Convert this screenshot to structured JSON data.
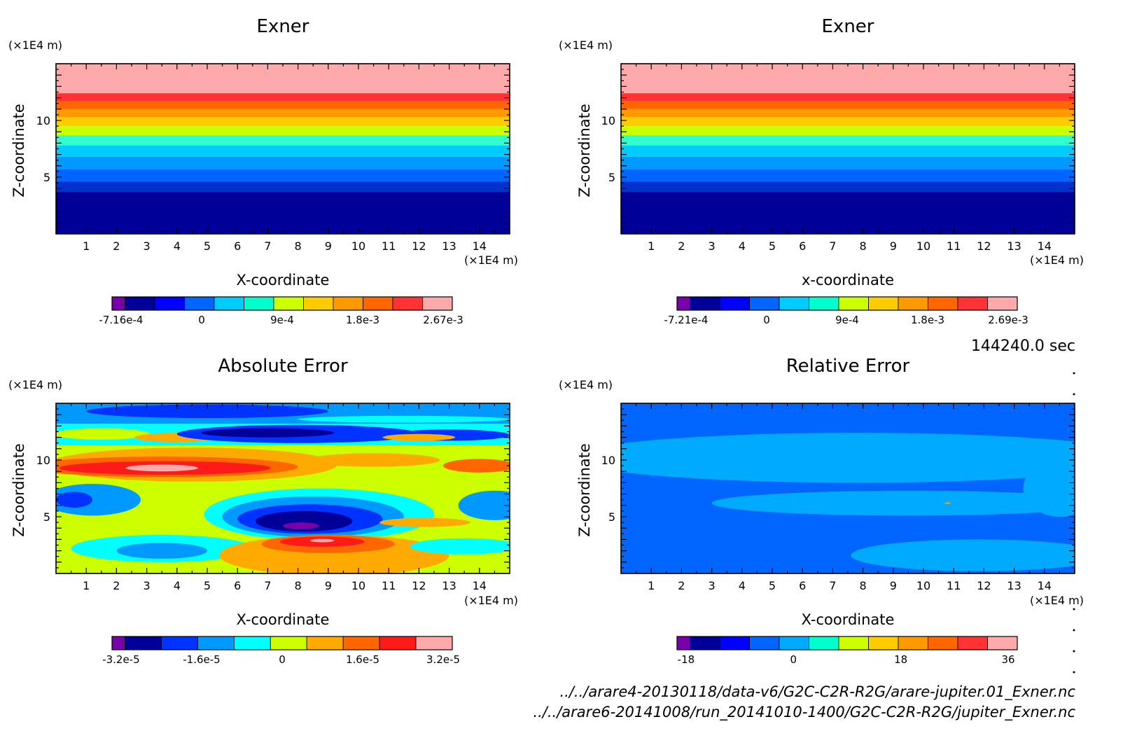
{
  "chart_data": [
    {
      "type": "contour",
      "title": "Exner",
      "xlabel": "X-coordinate",
      "ylabel": "Z-coordinate",
      "x_unit": "(×1E4 m)",
      "y_unit": "(×1E4 m)",
      "xlim": [
        0,
        15
      ],
      "ylim": [
        0,
        15
      ],
      "x_ticks": [
        "1",
        "2",
        "3",
        "4",
        "5",
        "6",
        "7",
        "8",
        "9",
        "10",
        "11",
        "12",
        "13",
        "14"
      ],
      "y_ticks": [
        "5",
        "10"
      ],
      "bands_top_to_bottom": [
        "#ffaaaa",
        "#ff3333",
        "#ff6600",
        "#ff9900",
        "#ffcc00",
        "#ccff00",
        "#33ffcc",
        "#00ccff",
        "#0099ff",
        "#0066ff",
        "#0033cc",
        "#000099",
        "#7700aa"
      ],
      "band_boundaries_z": [
        15,
        12.4,
        11.7,
        11.0,
        10.3,
        9.5,
        8.7,
        7.8,
        6.8,
        5.7,
        4.6,
        3.7,
        0
      ],
      "colorbar": {
        "colors": [
          "#7700aa",
          "#000099",
          "#0000ff",
          "#0066ff",
          "#00ccff",
          "#00ffcc",
          "#ccff00",
          "#ffcc00",
          "#ff9900",
          "#ff6600",
          "#ff3333",
          "#ffaaaa"
        ],
        "labels": [
          "-7.16e-4",
          "0",
          "9e-4",
          "1.8e-3",
          "2.67e-3"
        ]
      }
    },
    {
      "type": "contour",
      "title": "Exner",
      "xlabel": "x-coordinate",
      "ylabel": "Z-coordinate",
      "x_unit": "(×1E4 m)",
      "y_unit": "(×1E4 m)",
      "xlim": [
        0,
        15
      ],
      "ylim": [
        0,
        15
      ],
      "x_ticks": [
        "1",
        "2",
        "3",
        "4",
        "5",
        "6",
        "7",
        "8",
        "9",
        "10",
        "11",
        "12",
        "13",
        "14"
      ],
      "y_ticks": [
        "5",
        "10"
      ],
      "bands_top_to_bottom": [
        "#ffaaaa",
        "#ff3333",
        "#ff6600",
        "#ff9900",
        "#ffcc00",
        "#ccff00",
        "#33ffcc",
        "#00ccff",
        "#0099ff",
        "#0066ff",
        "#0033cc",
        "#000099",
        "#7700aa"
      ],
      "band_boundaries_z": [
        15,
        12.4,
        11.7,
        11.0,
        10.3,
        9.5,
        8.7,
        7.8,
        6.8,
        5.7,
        4.6,
        3.7,
        0
      ],
      "colorbar": {
        "colors": [
          "#7700aa",
          "#000099",
          "#0000ff",
          "#0066ff",
          "#00ccff",
          "#00ffcc",
          "#ccff00",
          "#ffcc00",
          "#ff9900",
          "#ff6600",
          "#ff3333",
          "#ffaaaa"
        ],
        "labels": [
          "-7.21e-4",
          "0",
          "9e-4",
          "1.8e-3",
          "2.69e-3"
        ]
      }
    },
    {
      "type": "contour",
      "title": "Absolute Error",
      "xlabel": "X-coordinate",
      "ylabel": "Z-coordinate",
      "x_unit": "(×1E4 m)",
      "y_unit": "(×1E4 m)",
      "xlim": [
        0,
        15
      ],
      "ylim": [
        0,
        15
      ],
      "x_ticks": [
        "1",
        "2",
        "3",
        "4",
        "5",
        "6",
        "7",
        "8",
        "9",
        "10",
        "11",
        "12",
        "13",
        "14"
      ],
      "y_ticks": [
        "5",
        "10"
      ],
      "colorbar": {
        "colors": [
          "#7700aa",
          "#000099",
          "#0033ff",
          "#0099ff",
          "#00ffff",
          "#ccff00",
          "#ffaa00",
          "#ff6600",
          "#ff1a1a",
          "#ffaaaa"
        ],
        "labels": [
          "-3.2e-5",
          "-1.6e-5",
          "0",
          "1.6e-5",
          "3.2e-5"
        ]
      }
    },
    {
      "type": "contour",
      "title": "Relative Error",
      "xlabel": "X-coordinate",
      "ylabel": "Z-coordinate",
      "x_unit": "(×1E4 m)",
      "y_unit": "(×1E4 m)",
      "xlim": [
        0,
        15
      ],
      "ylim": [
        0,
        15
      ],
      "x_ticks": [
        "1",
        "2",
        "3",
        "4",
        "5",
        "6",
        "7",
        "8",
        "9",
        "10",
        "11",
        "12",
        "13",
        "14"
      ],
      "y_ticks": [
        "5",
        "10"
      ],
      "colorbar": {
        "colors": [
          "#7700aa",
          "#000099",
          "#0000ff",
          "#0066ff",
          "#00aaff",
          "#00ffcc",
          "#ccff00",
          "#ffcc00",
          "#ff9900",
          "#ff6600",
          "#ff3333",
          "#ffaaaa"
        ],
        "labels": [
          "-18",
          "0",
          "18",
          "36"
        ]
      }
    }
  ],
  "timestamp": "144240.0 sec",
  "footer": {
    "file_1": "../../arare4-20130118/data-v6/G2C-C2R-R2G/arare-jupiter.01_Exner.nc",
    "file_2": "../../arare6-20141008/run_20141010-1400/G2C-C2R-R2G/jupiter_Exner.nc"
  }
}
